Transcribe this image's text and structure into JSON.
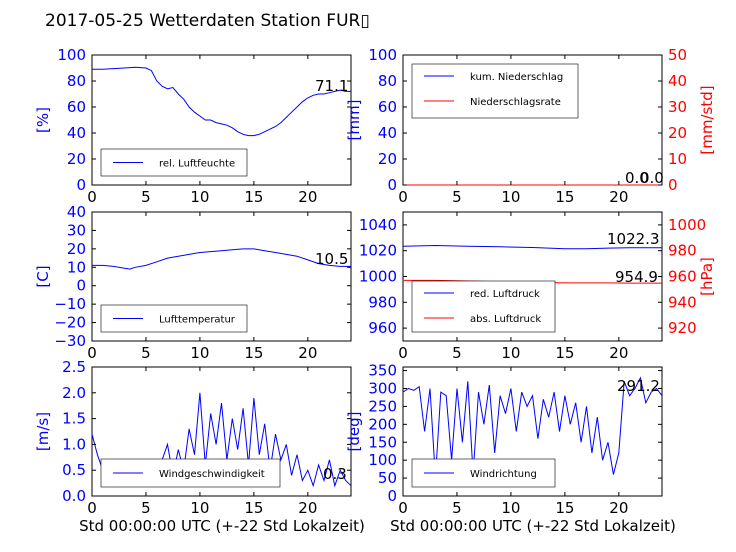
{
  "title": "2017-05-25 Wetterdaten Station FUR▯",
  "colors": {
    "left_axis": "#0000ff",
    "right_axis": "#ff0000",
    "series_blue": "#0000ff",
    "series_red": "#ff0000"
  },
  "chart_data": [
    {
      "id": "humidity",
      "type": "line",
      "ylabel": "[%]",
      "xlim": [
        0,
        24
      ],
      "ylim": [
        0,
        100
      ],
      "xticks": [
        "0",
        "5",
        "10",
        "15",
        "20"
      ],
      "yticks": [
        "0",
        "20",
        "40",
        "60",
        "80",
        "100"
      ],
      "legend": "bottom-left",
      "annotation": "71.1",
      "series": [
        {
          "name": "rel. Luftfeuchte",
          "color": "blue",
          "x": [
            0,
            1,
            2,
            3,
            4,
            5,
            5.5,
            6,
            6.5,
            7,
            7.5,
            8,
            8.5,
            9,
            9.5,
            10,
            10.5,
            11,
            11.5,
            12,
            12.5,
            13,
            13.5,
            14,
            14.5,
            15,
            15.5,
            16,
            16.5,
            17,
            17.5,
            18,
            18.5,
            19,
            19.5,
            20,
            20.5,
            21,
            21.5,
            22,
            22.5,
            23,
            23.5,
            24
          ],
          "y": [
            89,
            89,
            89.5,
            90,
            90.5,
            90,
            88,
            80,
            76,
            74,
            75,
            70,
            66,
            60,
            56,
            53,
            50,
            50,
            48,
            47,
            46,
            44,
            41,
            39,
            38,
            38,
            39,
            41,
            43,
            45,
            48,
            52,
            56,
            60,
            64,
            67,
            69,
            70,
            70,
            71,
            72,
            73,
            72,
            72
          ]
        }
      ]
    },
    {
      "id": "precipitation",
      "type": "line",
      "ylabel": "[mm]",
      "ylabel_right": "[mm/std]",
      "xlim": [
        0,
        24
      ],
      "ylim": [
        0,
        100
      ],
      "ylim_right": [
        0,
        50
      ],
      "xticks": [
        "0",
        "5",
        "10",
        "15",
        "20"
      ],
      "yticks": [
        "0",
        "20",
        "40",
        "60",
        "80",
        "100"
      ],
      "yticks_right": [
        "0",
        "10",
        "20",
        "30",
        "40",
        "50"
      ],
      "legend": "top-left",
      "annotation": "0.0",
      "annotation2": "0.0",
      "series": [
        {
          "name": "kum. Niederschlag",
          "color": "blue",
          "x": [
            0,
            24
          ],
          "y": [
            0,
            0
          ]
        },
        {
          "name": "Niederschlagsrate",
          "color": "red",
          "x": [
            0,
            24
          ],
          "y": [
            0,
            0
          ]
        }
      ]
    },
    {
      "id": "temperature",
      "type": "line",
      "ylabel": "[C]",
      "xlim": [
        0,
        24
      ],
      "ylim": [
        -30,
        40
      ],
      "xticks": [
        "0",
        "5",
        "10",
        "15",
        "20"
      ],
      "yticks": [
        "−30",
        "−20",
        "−10",
        "0",
        "10",
        "20",
        "30",
        "40"
      ],
      "legend": "bottom-left",
      "annotation": "10.5",
      "series": [
        {
          "name": "Lufttemperatur",
          "color": "blue",
          "x": [
            0,
            1,
            2,
            3,
            3.5,
            4,
            5,
            6,
            7,
            8,
            9,
            10,
            11,
            12,
            13,
            14,
            15,
            16,
            17,
            18,
            19,
            20,
            21,
            22,
            23,
            24
          ],
          "y": [
            11,
            11,
            10.5,
            9.5,
            9,
            10,
            11,
            13,
            15,
            16,
            17,
            18,
            18.5,
            19,
            19.5,
            20,
            20,
            19,
            18,
            17,
            16,
            14,
            12,
            11,
            10.5,
            10.5
          ]
        }
      ]
    },
    {
      "id": "pressure",
      "type": "line",
      "ylabel_right": "[hPa]",
      "xlim": [
        0,
        24
      ],
      "ylim": [
        950,
        1050
      ],
      "ylim_right": [
        910,
        1010
      ],
      "xticks": [
        "0",
        "5",
        "10",
        "15",
        "20"
      ],
      "yticks": [
        "960",
        "980",
        "1000",
        "1020",
        "1040"
      ],
      "yticks_right": [
        "920",
        "940",
        "960",
        "980",
        "1000"
      ],
      "legend": "bottom-left",
      "annotation": "1022.3",
      "annotation2": "954.9",
      "series": [
        {
          "name": "red. Luftdruck",
          "color": "blue",
          "x": [
            0,
            3,
            6,
            9,
            12,
            15,
            17,
            19,
            21,
            24
          ],
          "y": [
            1023.5,
            1024,
            1023.5,
            1023,
            1022.5,
            1021.5,
            1021.5,
            1022,
            1022.3,
            1022.3
          ]
        },
        {
          "name": "abs. Luftdruck",
          "color": "red",
          "x": [
            0,
            3,
            6,
            9,
            12,
            15,
            17,
            19,
            21,
            24
          ],
          "y": [
            957,
            957,
            956.5,
            956,
            955.5,
            955,
            955,
            955,
            954.9,
            954.9
          ]
        }
      ]
    },
    {
      "id": "windspeed",
      "type": "line",
      "ylabel": "[m/s]",
      "xlim": [
        0,
        24
      ],
      "ylim": [
        0,
        2.5
      ],
      "xticks": [
        "0",
        "5",
        "10",
        "15",
        "20"
      ],
      "yticks": [
        "0.0",
        "0.5",
        "1.0",
        "1.5",
        "2.0",
        "2.5"
      ],
      "legend": "bottom-left",
      "annotation": "0.3",
      "series": [
        {
          "name": "Windgeschwindigkeit",
          "color": "blue",
          "x": [
            0,
            0.5,
            1,
            1.5,
            2,
            2.5,
            3,
            3.5,
            4,
            4.5,
            5,
            5.5,
            6,
            6.5,
            7,
            7.5,
            8,
            8.5,
            9,
            9.5,
            10,
            10.5,
            11,
            11.5,
            12,
            12.5,
            13,
            13.5,
            14,
            14.5,
            15,
            15.5,
            16,
            16.5,
            17,
            17.5,
            18,
            18.5,
            19,
            19.5,
            20,
            20.5,
            21,
            21.5,
            22,
            22.5,
            23,
            23.5,
            24
          ],
          "y": [
            1.2,
            0.8,
            0.5,
            0.3,
            0.6,
            0.2,
            0.5,
            0.3,
            0.7,
            0.2,
            0.6,
            0.3,
            0.5,
            0.7,
            1.0,
            0.4,
            0.9,
            0.5,
            1.3,
            0.8,
            2.0,
            0.6,
            1.6,
            1.0,
            1.8,
            0.7,
            1.5,
            0.9,
            1.7,
            0.6,
            1.9,
            0.8,
            1.4,
            0.5,
            1.2,
            0.7,
            1.0,
            0.4,
            0.8,
            0.3,
            0.5,
            0.2,
            0.6,
            0.3,
            0.7,
            0.2,
            0.5,
            0.3,
            0.2
          ]
        }
      ]
    },
    {
      "id": "winddirection",
      "type": "line",
      "ylabel": "[deg]",
      "xlim": [
        0,
        24
      ],
      "ylim": [
        0,
        360
      ],
      "xticks": [
        "0",
        "5",
        "10",
        "15",
        "20"
      ],
      "yticks": [
        "0",
        "50",
        "100",
        "150",
        "200",
        "250",
        "300",
        "350"
      ],
      "legend": "bottom-left",
      "annotation": "291.2",
      "series": [
        {
          "name": "Windrichtung",
          "color": "blue",
          "x": [
            0,
            0.5,
            1,
            1.5,
            2,
            2.5,
            3,
            3.5,
            4,
            4.5,
            5,
            5.5,
            6,
            6.5,
            7,
            7.5,
            8,
            8.5,
            9,
            9.5,
            10,
            10.5,
            11,
            11.5,
            12,
            12.5,
            13,
            13.5,
            14,
            14.5,
            15,
            15.5,
            16,
            16.5,
            17,
            17.5,
            18,
            18.5,
            19,
            19.5,
            20,
            20.5,
            21,
            21.5,
            22,
            22.5,
            23,
            23.5,
            24
          ],
          "y": [
            290,
            300,
            295,
            305,
            180,
            300,
            50,
            290,
            280,
            100,
            300,
            150,
            320,
            60,
            290,
            200,
            310,
            120,
            280,
            230,
            300,
            180,
            290,
            250,
            280,
            160,
            270,
            220,
            290,
            180,
            280,
            200,
            260,
            150,
            250,
            120,
            220,
            100,
            150,
            60,
            120,
            320,
            280,
            300,
            330,
            260,
            290,
            300,
            280
          ]
        }
      ]
    }
  ],
  "xlabel_bottom": "Std 00:00:00 UTC (+-22 Std Lokalzeit)"
}
